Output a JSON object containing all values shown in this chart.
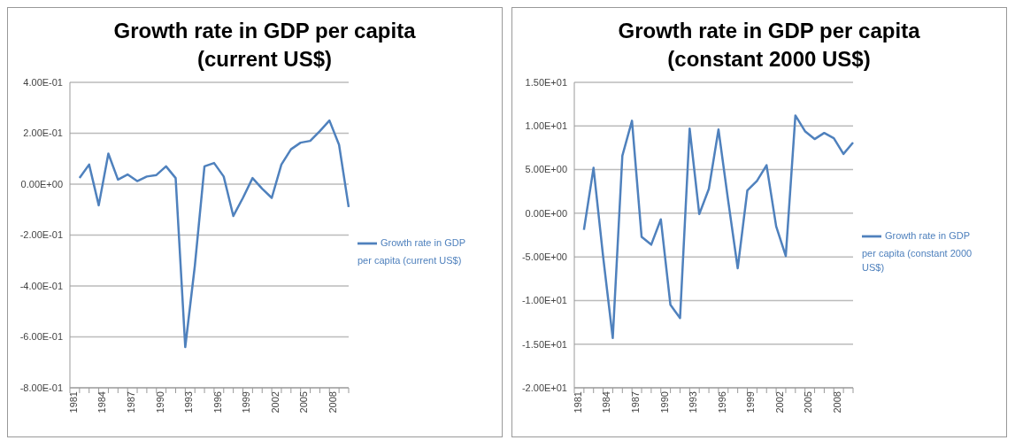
{
  "chart_data": [
    {
      "type": "line",
      "title": "Growth rate in GDP per capita (current US$)",
      "categories": [
        "1981",
        null,
        null,
        "1984",
        null,
        null,
        "1987",
        null,
        null,
        "1990",
        null,
        null,
        "1993",
        null,
        null,
        "1996",
        null,
        null,
        "1999",
        null,
        null,
        "2002",
        null,
        null,
        "2005",
        null,
        null,
        "2008",
        null,
        null
      ],
      "series": [
        {
          "name": "Growth rate in GDP per capita (current US$)",
          "color": "#4f81bd",
          "values": [
            null,
            0.024,
            0.077,
            -0.083,
            0.12,
            0.018,
            0.038,
            0.012,
            0.03,
            0.036,
            0.07,
            0.024,
            -0.64,
            -0.32,
            0.07,
            0.083,
            0.03,
            -0.125,
            -0.054,
            0.024,
            -0.018,
            -0.054,
            0.077,
            0.137,
            0.163,
            0.17,
            0.208,
            0.25,
            0.155,
            -0.09
          ]
        }
      ],
      "ylim": [
        -0.8,
        0.4
      ],
      "yticks": [
        {
          "value": -0.8,
          "label": "-8.00E-01"
        },
        {
          "value": -0.6,
          "label": "-6.00E-01"
        },
        {
          "value": -0.4,
          "label": "-4.00E-01"
        },
        {
          "value": -0.2,
          "label": "-2.00E-01"
        },
        {
          "value": 0,
          "label": "0.00E+00"
        },
        {
          "value": 0.2,
          "label": "2.00E-01"
        },
        {
          "value": 0.4,
          "label": "4.00E-01"
        }
      ],
      "grid": "y",
      "legend": "right",
      "marker": "none"
    },
    {
      "type": "line",
      "title": "Growth rate in GDP per capita (constant 2000 US$)",
      "categories": [
        "1981",
        null,
        null,
        "1984",
        null,
        null,
        "1987",
        null,
        null,
        "1990",
        null,
        null,
        "1993",
        null,
        null,
        "1996",
        null,
        null,
        "1999",
        null,
        null,
        "2002",
        null,
        null,
        "2005",
        null,
        null,
        "2008",
        null,
        null
      ],
      "series": [
        {
          "name": "Growth rate in GDP per capita (constant 2000 US$)",
          "color": "#4f81bd",
          "values": [
            null,
            -1.9,
            5.2,
            -5,
            -14.3,
            6.6,
            10.6,
            -2.7,
            -3.6,
            -0.7,
            -10.5,
            -12,
            9.7,
            -0.1,
            2.8,
            9.6,
            1.5,
            -6.3,
            2.6,
            3.7,
            5.5,
            -1.5,
            -4.9,
            11.2,
            9.4,
            8.5,
            9.2,
            8.6,
            6.8,
            8.1
          ]
        }
      ],
      "ylim": [
        -20,
        15
      ],
      "yticks": [
        {
          "value": -20,
          "label": "-2.00E+01"
        },
        {
          "value": -15,
          "label": "-1.50E+01"
        },
        {
          "value": -10,
          "label": "-1.00E+01"
        },
        {
          "value": -5,
          "label": "-5.00E+00"
        },
        {
          "value": 0,
          "label": "0.00E+00"
        },
        {
          "value": 5,
          "label": "5.00E+00"
        },
        {
          "value": 10,
          "label": "1.00E+01"
        },
        {
          "value": 15,
          "label": "1.50E+01"
        }
      ],
      "grid": "y",
      "legend": "right",
      "marker": "none"
    }
  ]
}
